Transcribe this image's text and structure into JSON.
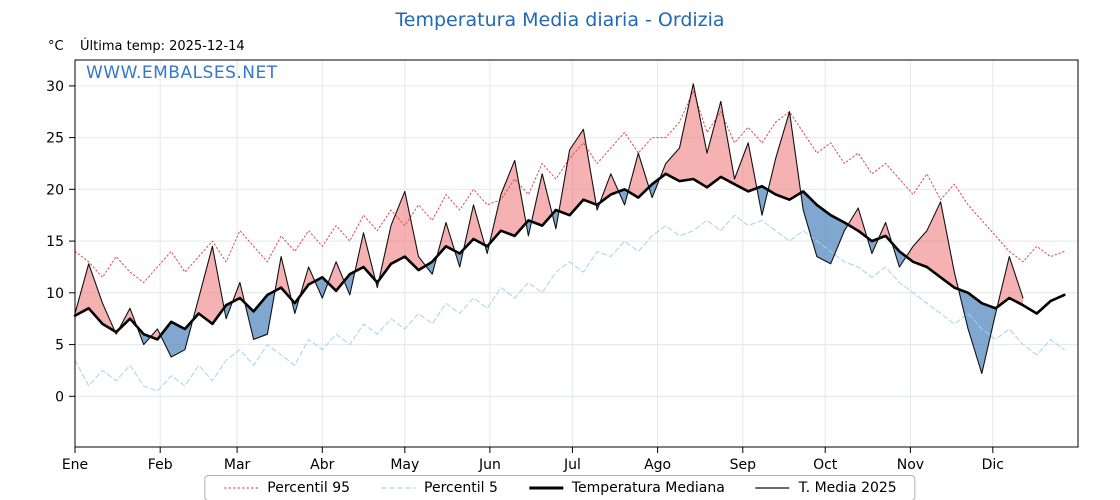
{
  "title": "Temperatura Media diaria - Ordizia",
  "header": {
    "unit": "°C",
    "last_temp": "Última temp: 2025-12-14"
  },
  "watermark": "WWW.EMBALSES.NET",
  "colors": {
    "title": "#2368b8",
    "watermark": "#3577c8",
    "p95": "#dd4a4a",
    "p5": "#a5d5e6",
    "median": "#000000",
    "t2025": "#111111",
    "fill_above": "rgba(238,115,115,0.55)",
    "fill_below": "rgba(95,145,195,0.8)",
    "grid": "#e4e7eb",
    "axis": "#000000"
  },
  "legend": [
    {
      "label": "Percentil 95",
      "style": "dotted",
      "color": "#dd4a4a",
      "width": 1.2
    },
    {
      "label": "Percentil 5",
      "style": "dashed",
      "color": "#a5d5e6",
      "width": 1.2
    },
    {
      "label": "Temperatura Mediana",
      "style": "solid",
      "color": "#000000",
      "width": 3
    },
    {
      "label": "T. Media 2025",
      "style": "solid",
      "color": "#111111",
      "width": 1.2
    }
  ],
  "chart_data": {
    "type": "line",
    "title": "Temperatura Media diaria - Ordizia",
    "xlabel": "",
    "ylabel": "°C",
    "ylim": [
      -4.9,
      32.5
    ],
    "xlim_days": [
      0,
      365
    ],
    "grid": true,
    "legend_position": "bottom",
    "yticks": [
      0,
      5,
      10,
      15,
      20,
      25,
      30
    ],
    "months": [
      {
        "label": "Ene",
        "day": 0
      },
      {
        "label": "Feb",
        "day": 31
      },
      {
        "label": "Mar",
        "day": 59
      },
      {
        "label": "Abr",
        "day": 90
      },
      {
        "label": "May",
        "day": 120
      },
      {
        "label": "Jun",
        "day": 151
      },
      {
        "label": "Jul",
        "day": 181
      },
      {
        "label": "Ago",
        "day": 212
      },
      {
        "label": "Sep",
        "day": 243
      },
      {
        "label": "Oct",
        "day": 273
      },
      {
        "label": "Nov",
        "day": 304
      },
      {
        "label": "Dic",
        "day": 334
      }
    ],
    "x_days": [
      0,
      5,
      10,
      15,
      20,
      25,
      30,
      35,
      40,
      45,
      50,
      55,
      60,
      65,
      70,
      75,
      80,
      85,
      90,
      95,
      100,
      105,
      110,
      115,
      120,
      125,
      130,
      135,
      140,
      145,
      150,
      155,
      160,
      165,
      170,
      175,
      180,
      185,
      190,
      195,
      200,
      205,
      210,
      215,
      220,
      225,
      230,
      235,
      240,
      245,
      250,
      255,
      260,
      265,
      270,
      275,
      280,
      285,
      290,
      295,
      300,
      305,
      310,
      315,
      320,
      325,
      330,
      335,
      340,
      345,
      350,
      355,
      360
    ],
    "series": [
      {
        "name": "Percentil 95",
        "color": "#dd4a4a",
        "style": "dotted",
        "width": 1,
        "values": [
          14.0,
          13.0,
          11.5,
          13.5,
          12.0,
          11.0,
          12.5,
          14.0,
          12.0,
          13.5,
          15.0,
          13.0,
          16.0,
          14.5,
          13.0,
          15.5,
          14.0,
          16.0,
          14.5,
          16.5,
          15.0,
          17.5,
          16.0,
          18.0,
          16.5,
          18.5,
          17.0,
          19.5,
          18.0,
          20.0,
          18.5,
          19.0,
          21.0,
          19.5,
          22.5,
          21.0,
          23.0,
          24.5,
          22.5,
          24.0,
          25.5,
          23.5,
          25.0,
          25.0,
          26.5,
          29.5,
          25.5,
          27.5,
          24.5,
          26.0,
          24.5,
          26.5,
          27.5,
          25.5,
          23.5,
          24.5,
          22.5,
          23.5,
          21.5,
          22.5,
          21.0,
          19.5,
          21.5,
          19.0,
          20.5,
          18.5,
          17.0,
          15.5,
          14.0,
          13.0,
          14.5,
          13.5,
          14.0
        ]
      },
      {
        "name": "Percentil 5",
        "color": "#a5d5e6",
        "style": "dashed",
        "width": 1,
        "values": [
          3.5,
          1.0,
          2.5,
          1.5,
          3.0,
          1.0,
          0.5,
          2.0,
          1.0,
          3.0,
          1.5,
          3.5,
          4.5,
          3.0,
          5.0,
          4.0,
          3.0,
          5.5,
          4.5,
          6.0,
          5.0,
          7.0,
          6.0,
          7.5,
          6.5,
          8.0,
          7.0,
          9.0,
          8.0,
          9.5,
          8.5,
          10.5,
          9.5,
          11.0,
          10.0,
          12.0,
          13.0,
          12.0,
          14.0,
          13.5,
          15.0,
          14.0,
          15.5,
          16.5,
          15.5,
          16.0,
          17.0,
          16.0,
          17.5,
          16.5,
          17.0,
          16.0,
          15.0,
          16.0,
          15.0,
          14.0,
          13.0,
          12.5,
          11.5,
          12.5,
          11.0,
          10.0,
          9.0,
          8.0,
          7.0,
          8.0,
          6.5,
          5.5,
          6.5,
          5.0,
          4.0,
          5.5,
          4.5
        ]
      },
      {
        "name": "Temperatura Mediana",
        "color": "#000000",
        "style": "solid",
        "width": 2.6,
        "values": [
          7.8,
          8.5,
          7.0,
          6.2,
          7.5,
          6.0,
          5.5,
          7.2,
          6.5,
          8.0,
          7.0,
          8.8,
          9.5,
          8.2,
          9.8,
          10.5,
          9.0,
          10.8,
          11.5,
          10.2,
          11.8,
          12.5,
          11.0,
          12.8,
          13.5,
          12.2,
          13.0,
          14.5,
          13.8,
          15.2,
          14.5,
          16.0,
          15.5,
          17.0,
          16.5,
          18.0,
          17.5,
          19.0,
          18.5,
          19.5,
          20.0,
          19.2,
          20.5,
          21.5,
          20.8,
          21.0,
          20.2,
          21.2,
          20.5,
          19.8,
          20.3,
          19.5,
          19.0,
          19.8,
          18.5,
          17.5,
          16.8,
          16.0,
          15.0,
          15.5,
          14.0,
          13.0,
          12.5,
          11.5,
          10.5,
          10.0,
          9.0,
          8.5,
          9.5,
          8.8,
          8.0,
          9.2,
          9.8
        ]
      },
      {
        "name": "T. Media 2025",
        "color": "#111111",
        "style": "solid",
        "width": 1.1,
        "values": [
          8.0,
          12.8,
          9.0,
          6.0,
          8.5,
          5.0,
          6.5,
          3.8,
          4.5,
          9.5,
          14.5,
          7.5,
          11.0,
          5.5,
          6.0,
          13.5,
          8.0,
          12.5,
          9.5,
          13.0,
          9.8,
          15.8,
          10.5,
          16.5,
          19.8,
          13.5,
          11.8,
          16.8,
          12.5,
          18.5,
          13.8,
          19.5,
          22.8,
          15.5,
          21.5,
          16.2,
          23.8,
          25.8,
          18.0,
          21.5,
          18.5,
          23.5,
          19.2,
          22.5,
          24.0,
          30.2,
          23.5,
          28.5,
          21.0,
          24.5,
          17.5,
          23.0,
          27.5,
          18.0,
          13.5,
          12.8,
          16.0,
          18.2,
          13.8,
          16.8,
          12.5,
          14.5,
          16.0,
          18.8,
          12.0,
          6.5,
          2.2,
          8.0,
          13.5,
          9.5,
          null,
          null,
          null
        ]
      }
    ],
    "fills": {
      "between": [
        "T. Media 2025",
        "Temperatura Mediana"
      ],
      "above_color": "rgba(238,115,115,0.55)",
      "below_color": "rgba(95,145,195,0.8)"
    }
  }
}
